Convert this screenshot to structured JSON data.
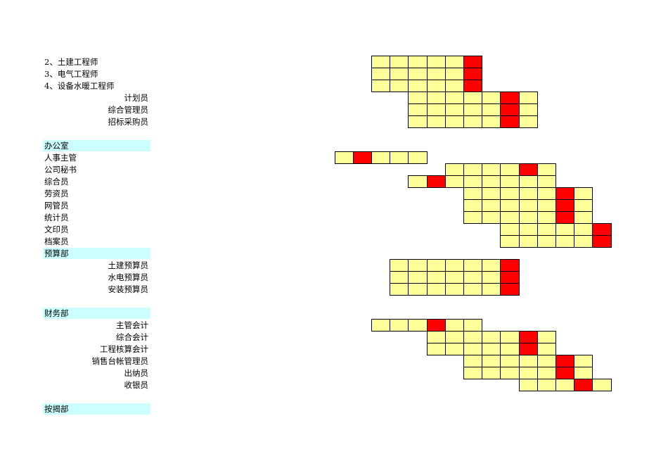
{
  "sheet": {
    "grid_colors": {
      "cell": "#ffff99",
      "milestone": "#ff0000",
      "header_fill": "#ccffff"
    },
    "rows": [
      {
        "label": "2、土建工程师",
        "align": "left",
        "header": false,
        "start": 0,
        "count": 6,
        "mark": 5
      },
      {
        "label": "3、电气工程师",
        "align": "left",
        "header": false,
        "start": 0,
        "count": 6,
        "mark": 5
      },
      {
        "label": "4、设备水暖工程师",
        "align": "left",
        "header": false,
        "start": 0,
        "count": 6,
        "mark": 5
      },
      {
        "label": "计划员",
        "align": "right",
        "header": false,
        "start": 2,
        "count": 7,
        "mark": 7
      },
      {
        "label": "综合管理员",
        "align": "right",
        "header": false,
        "start": 2,
        "count": 7,
        "mark": 7
      },
      {
        "label": "招标采购员",
        "align": "right",
        "header": false,
        "start": 2,
        "count": 7,
        "mark": 7
      },
      {
        "label": "",
        "align": "left",
        "header": false,
        "start": null,
        "count": 0,
        "mark": null
      },
      {
        "label": "办公室",
        "align": "left",
        "header": true,
        "start": null,
        "count": 0,
        "mark": null
      },
      {
        "label": "人事主管",
        "align": "left",
        "header": false,
        "start": -2,
        "count": 5,
        "mark": -1
      },
      {
        "label": "公司秘书",
        "align": "left",
        "header": false,
        "start": 4,
        "count": 6,
        "mark": 8
      },
      {
        "label": "综合员",
        "align": "left",
        "header": false,
        "start": 2,
        "count": 8,
        "mark": 3
      },
      {
        "label": "劳资员",
        "align": "left",
        "header": false,
        "start": 5,
        "count": 7,
        "mark": 10
      },
      {
        "label": "网管员",
        "align": "left",
        "header": false,
        "start": 5,
        "count": 7,
        "mark": 10
      },
      {
        "label": "统计员",
        "align": "left",
        "header": false,
        "start": 5,
        "count": 7,
        "mark": 10
      },
      {
        "label": "文印员",
        "align": "left",
        "header": false,
        "start": 7,
        "count": 6,
        "mark": 12
      },
      {
        "label": "档案员",
        "align": "left",
        "header": false,
        "start": 7,
        "count": 6,
        "mark": 12
      },
      {
        "label": "预算部",
        "align": "left",
        "header": true,
        "start": null,
        "count": 0,
        "mark": null
      },
      {
        "label": "土建预算员",
        "align": "right",
        "header": false,
        "start": 1,
        "count": 7,
        "mark": 7
      },
      {
        "label": "水电预算员",
        "align": "right",
        "header": false,
        "start": 1,
        "count": 7,
        "mark": 7
      },
      {
        "label": "安装预算员",
        "align": "right",
        "header": false,
        "start": 1,
        "count": 7,
        "mark": 7
      },
      {
        "label": "",
        "align": "left",
        "header": false,
        "start": null,
        "count": 0,
        "mark": null
      },
      {
        "label": "财务部",
        "align": "left",
        "header": true,
        "start": null,
        "count": 0,
        "mark": null
      },
      {
        "label": "主管会计",
        "align": "right",
        "header": false,
        "start": 0,
        "count": 6,
        "mark": 3
      },
      {
        "label": "综合会计",
        "align": "right",
        "header": false,
        "start": 3,
        "count": 7,
        "mark": 8
      },
      {
        "label": "工程核算会计",
        "align": "right",
        "header": false,
        "start": 3,
        "count": 7,
        "mark": 8
      },
      {
        "label": "销售台帐管理员",
        "align": "right",
        "header": false,
        "start": 5,
        "count": 7,
        "mark": 10
      },
      {
        "label": "出纳员",
        "align": "right",
        "header": false,
        "start": 5,
        "count": 7,
        "mark": 10
      },
      {
        "label": "收银员",
        "align": "right",
        "header": false,
        "start": 8,
        "count": 5,
        "mark": 11
      },
      {
        "label": "",
        "align": "left",
        "header": false,
        "start": null,
        "count": 0,
        "mark": null
      },
      {
        "label": "按揭部",
        "align": "left",
        "header": true,
        "start": null,
        "count": 0,
        "mark": null
      }
    ]
  }
}
